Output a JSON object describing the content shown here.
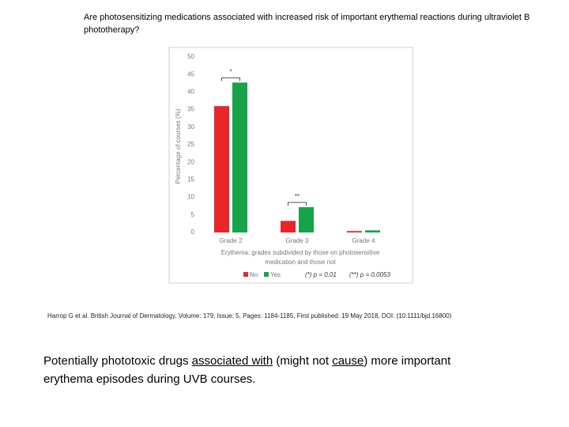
{
  "title": "Are photosensitizing medications associated with increased risk of important erythemal reactions during ultraviolet B phototherapy?",
  "citation": "Harrop G et al. British Journal of Dermatology, Volume: 179, Issue: 5, Pages: 1184-1185, First published: 19 May 2018, DOI: (10.1111/bjd.16800)",
  "caption": [
    "Potentially phototoxic drugs ",
    "associated with",
    " (might not ",
    "cause",
    ") more important erythema episodes during UVB courses."
  ],
  "chart_data": {
    "type": "bar",
    "ylabel": "Percentage of courses (%)",
    "xlabel": [
      "Erythema: grades subdivided by those on photosensitive",
      "medication and those not"
    ],
    "categories": [
      "Grade 2",
      "Grade 3",
      "Grade 4"
    ],
    "series": [
      {
        "name": "No",
        "color": "#e8262a",
        "values": [
          36,
          3.3,
          0.4
        ]
      },
      {
        "name": "Yes",
        "color": "#16a34a",
        "values": [
          42.7,
          7.2,
          0.6
        ]
      }
    ],
    "ylim": [
      0,
      50
    ],
    "yticks": [
      0,
      5,
      10,
      15,
      20,
      25,
      30,
      35,
      40,
      45,
      50
    ],
    "grid": false,
    "annotations": [
      "*",
      "**"
    ],
    "p_values": [
      "(*)  p = 0.01",
      "(**) p = 0.0053"
    ]
  }
}
